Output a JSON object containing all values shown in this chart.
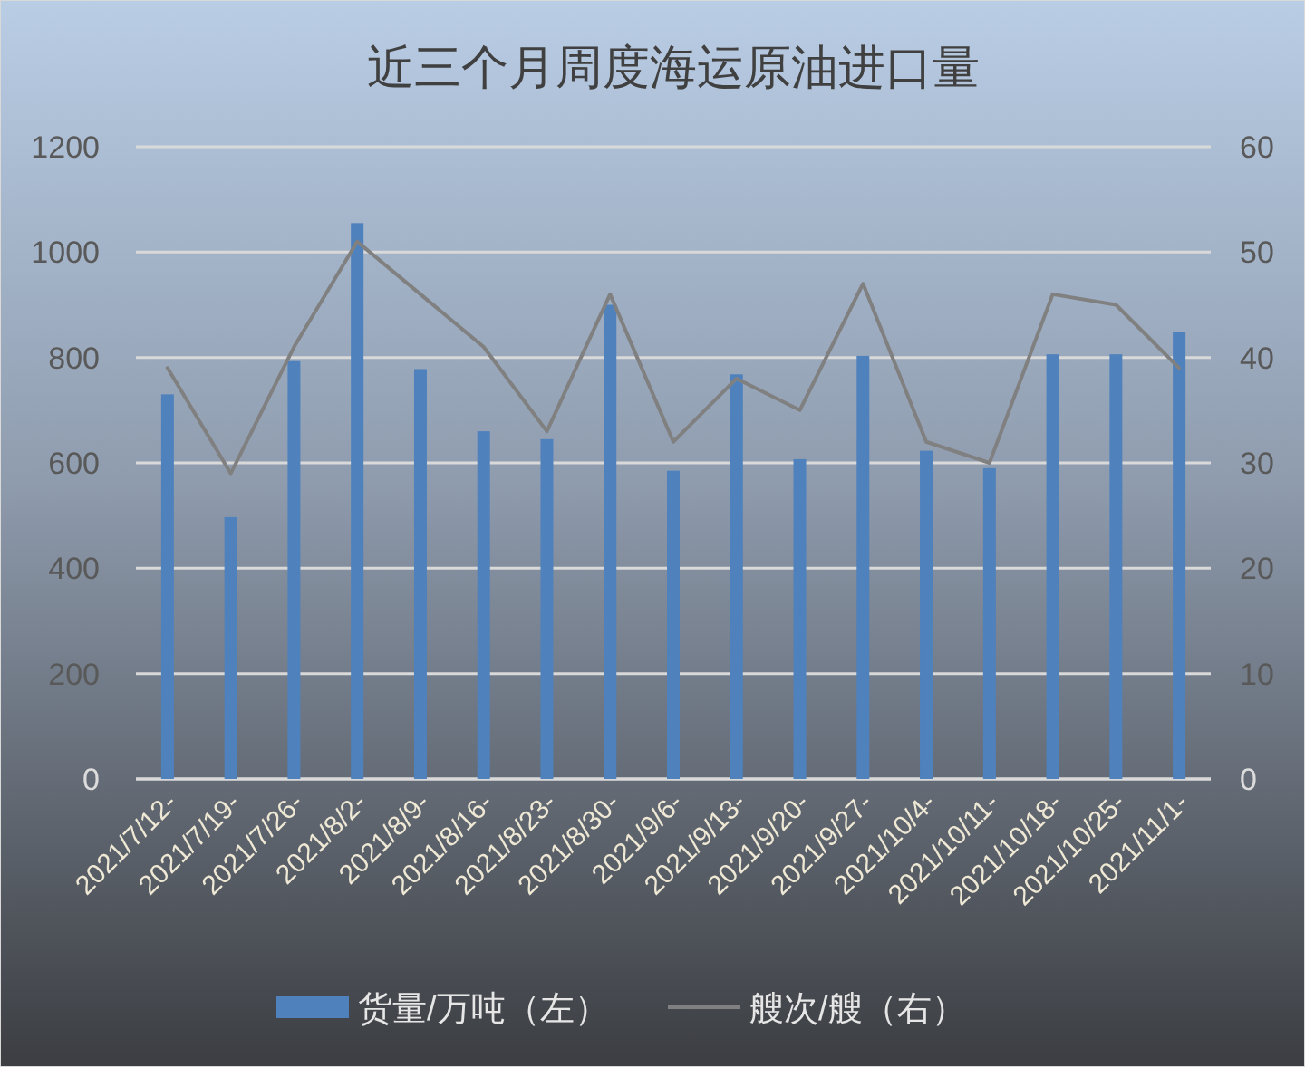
{
  "chart_data": {
    "type": "bar",
    "title": "近三个月周度海运原油进口量",
    "categories": [
      "2021/7/12-",
      "2021/7/19-",
      "2021/7/26-",
      "2021/8/2-",
      "2021/8/9-",
      "2021/8/16-",
      "2021/8/23-",
      "2021/8/30-",
      "2021/9/6-",
      "2021/9/13-",
      "2021/9/20-",
      "2021/9/27-",
      "2021/10/4-",
      "2021/10/11-",
      "2021/10/18-",
      "2021/10/25-",
      "2021/11/1-"
    ],
    "series": [
      {
        "name": "货量/万吨（左）",
        "color": "#4f81bd",
        "values": [
          730,
          497,
          793,
          1055,
          778,
          660,
          645,
          900,
          585,
          768,
          607,
          803,
          623,
          590,
          806,
          806,
          848
        ]
      },
      {
        "name": "艘次/艘（右）",
        "type": "line",
        "axis": "y2",
        "color": "#808080",
        "values": [
          39,
          29,
          41,
          51,
          46,
          41,
          33,
          46,
          32,
          38,
          35,
          47,
          32,
          30,
          46,
          45,
          39
        ]
      }
    ],
    "ylim": [
      0,
      1200
    ],
    "yticks": [
      0,
      200,
      400,
      600,
      800,
      1000,
      1200
    ],
    "y2lim": [
      0,
      60
    ],
    "y2ticks": [
      0,
      10,
      20,
      30,
      40,
      50,
      60
    ],
    "grid": "y",
    "legend": "bottom"
  }
}
